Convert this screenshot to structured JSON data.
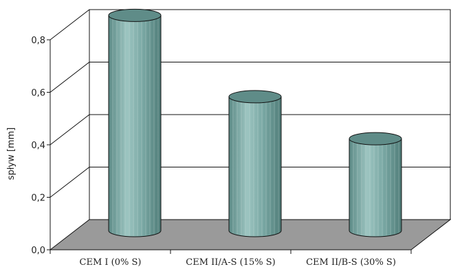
{
  "chart_data": {
    "type": "bar",
    "title": "",
    "xlabel": "",
    "ylabel": "spływ [mm]",
    "categories": [
      "CEM I (0% S)",
      "CEM II/A-S (15% S)",
      "CEM II/B-S (30% S)"
    ],
    "values": [
      0.82,
      0.51,
      0.35
    ],
    "yticks": [
      "0,0",
      "0,2",
      "0,4",
      "0,6",
      "0,8"
    ],
    "ytick_values": [
      0,
      0.2,
      0.4,
      0.6,
      0.8
    ],
    "ylim": [
      0,
      0.8
    ],
    "grid": true,
    "style": "3d-cylinder",
    "colors": {
      "bar_body": "#6e9e9a",
      "bar_top": "#5f8c88",
      "floor": "#9a9a9a",
      "outline": "#111111"
    }
  }
}
